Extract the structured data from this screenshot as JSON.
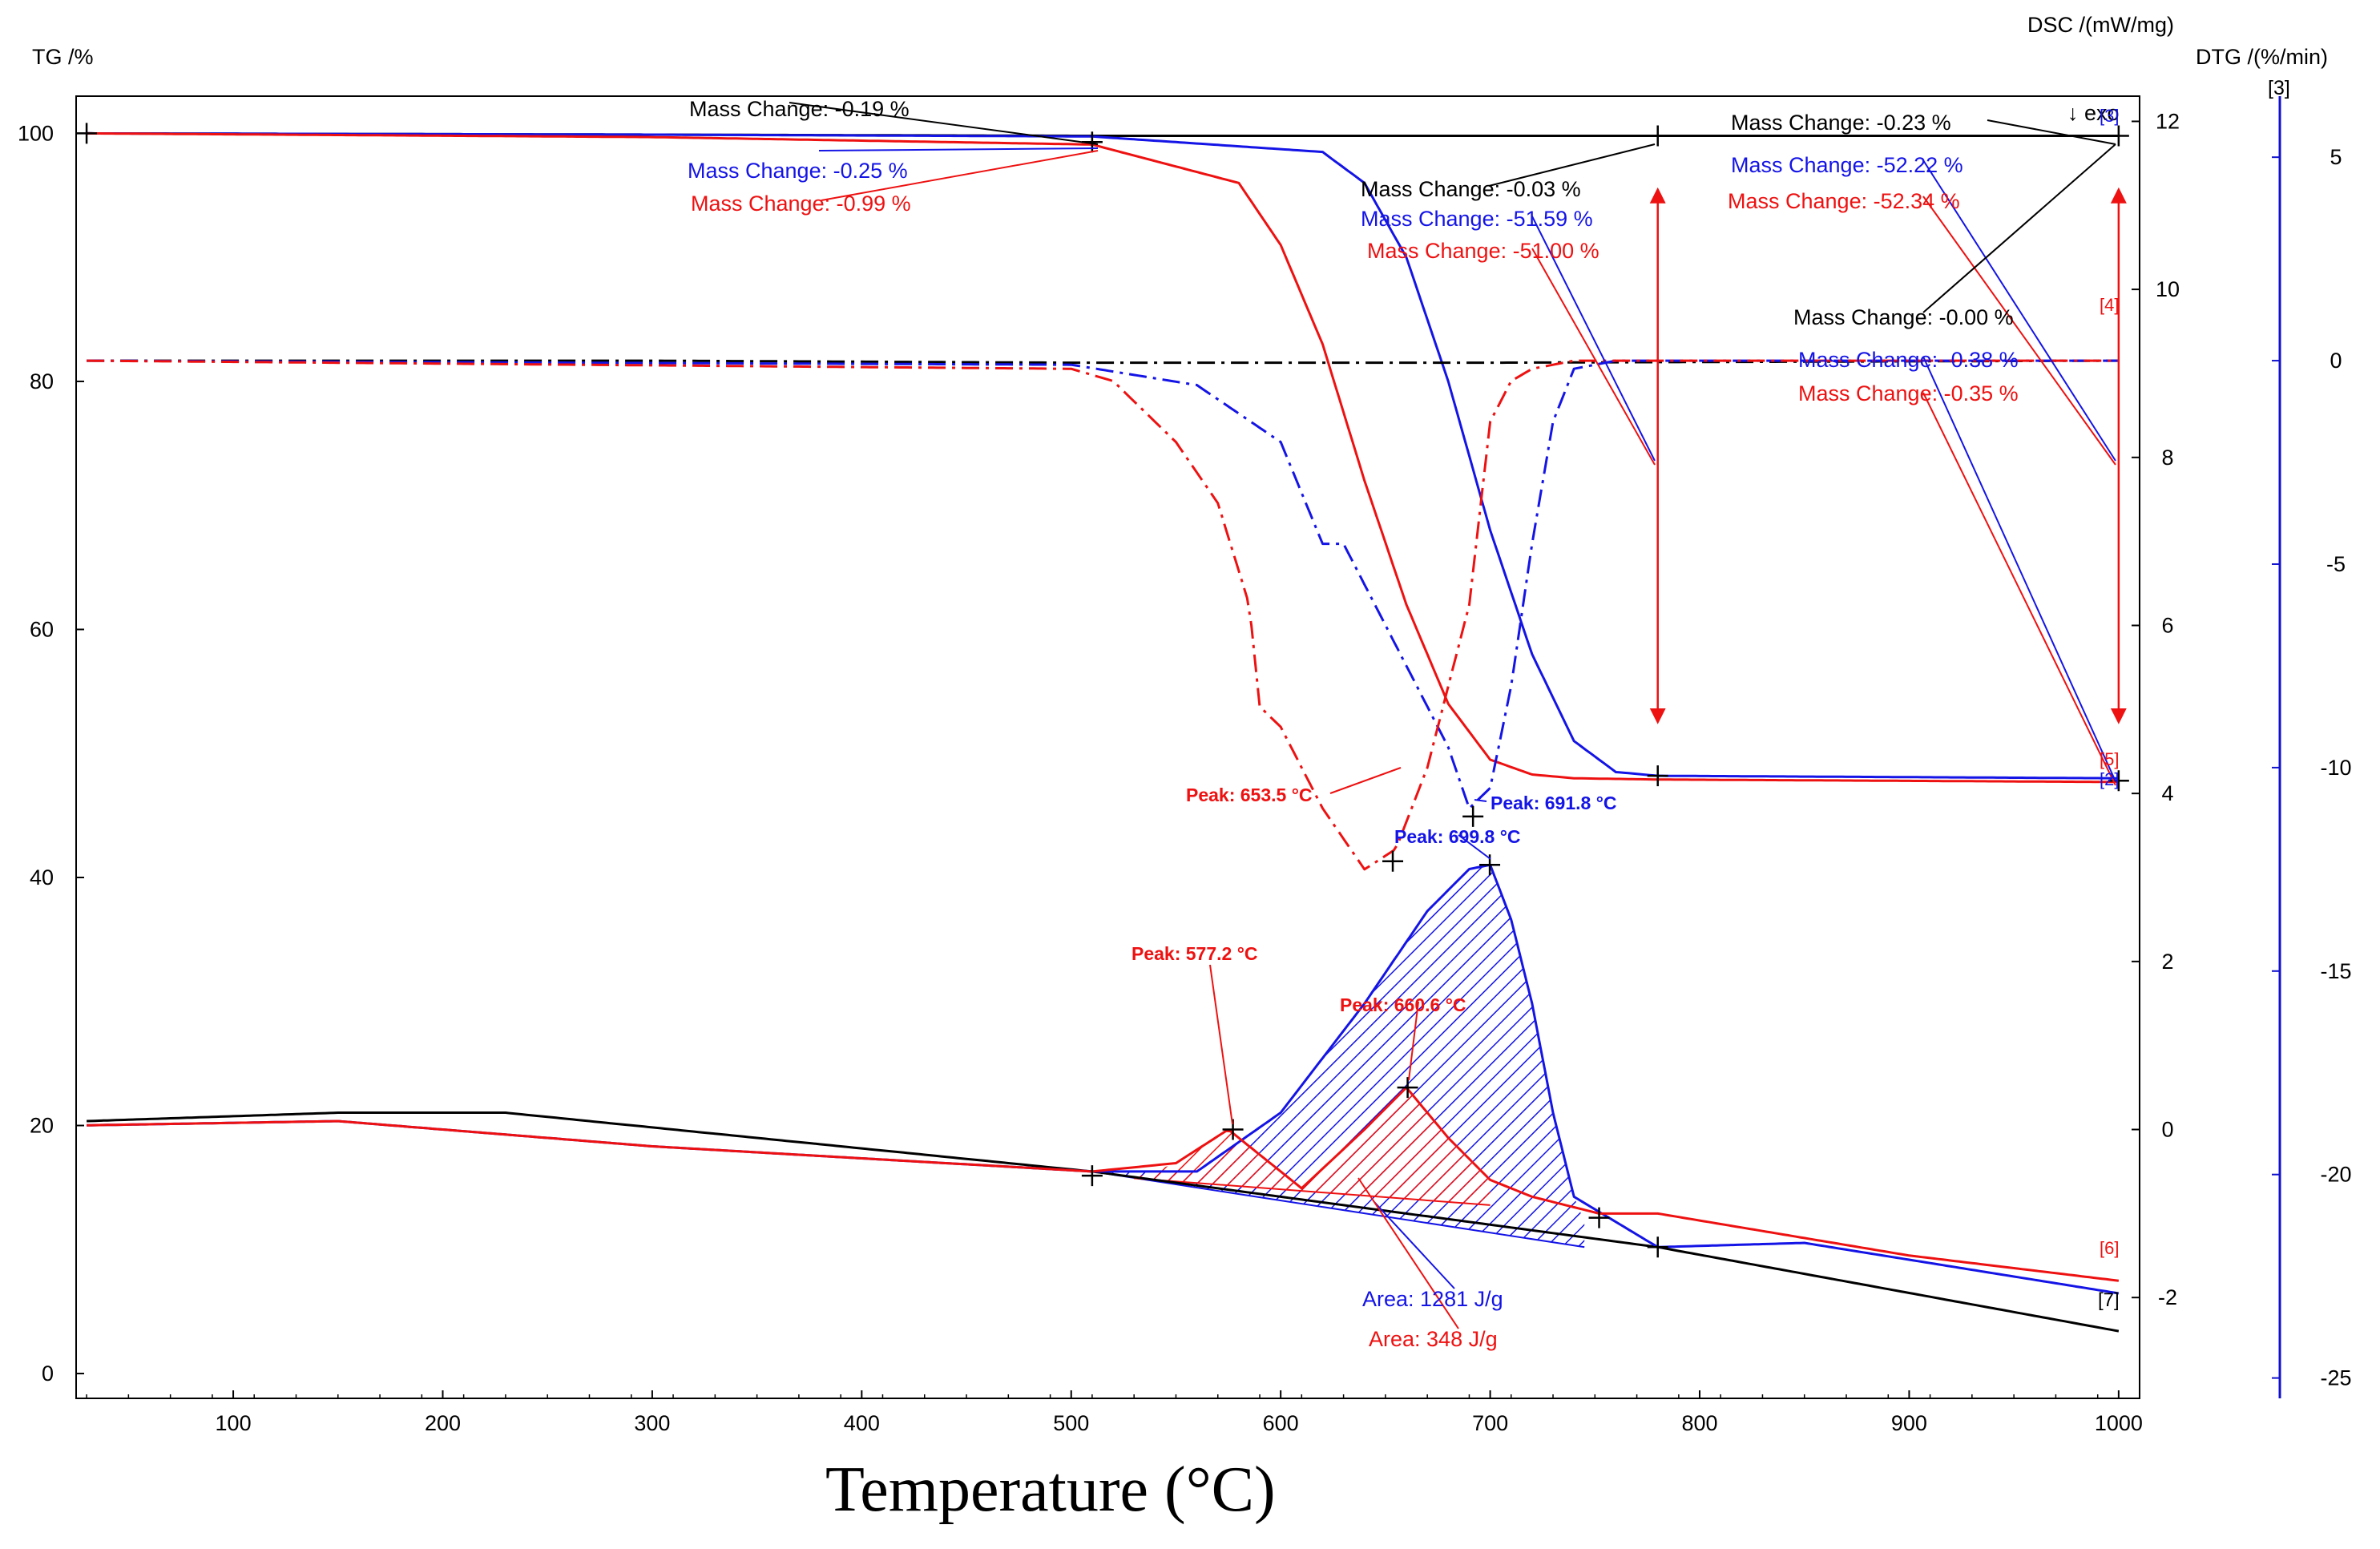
{
  "chart_data": {
    "type": "line",
    "title": "",
    "xlabel": "Temperature (°C)",
    "xlim": [
      25,
      1010
    ],
    "x_ticks": [
      "100",
      "200",
      "300",
      "400",
      "500",
      "600",
      "700",
      "800",
      "900",
      "1000"
    ],
    "axes": {
      "tg": {
        "label": "TG /%",
        "ylim": [
          -2,
          103
        ],
        "ticks": [
          "0",
          "20",
          "40",
          "60",
          "80",
          "100"
        ]
      },
      "dsc": {
        "label": "DSC /(mW/mg)",
        "marker": "↓ exo",
        "ylim": [
          -3.2,
          12.3
        ],
        "ticks": [
          "-2",
          "0",
          "2",
          "4",
          "6",
          "8",
          "10",
          "12"
        ]
      },
      "dtg": {
        "label": "DTG /(%/min)",
        "tag": "[3]",
        "ylim": [
          -25.5,
          6.5
        ],
        "ticks": [
          "-25",
          "-20",
          "-15",
          "-10",
          "-5",
          "0",
          "5"
        ]
      }
    },
    "colors": {
      "black": "#000000",
      "blue": "#1414e6",
      "red": "#ee1111",
      "dtg_axis": "#1010cc"
    },
    "series": [
      {
        "name": "TG black",
        "axis": "tg",
        "color": "#000000",
        "style": "solid",
        "x": [
          30,
          300,
          510,
          700,
          780,
          1000
        ],
        "y": [
          100,
          99.9,
          99.8,
          99.8,
          99.8,
          99.8
        ]
      },
      {
        "name": "TG blue",
        "axis": "tg",
        "color": "#1414e6",
        "style": "solid",
        "x": [
          30,
          300,
          510,
          620,
          640,
          660,
          680,
          700,
          720,
          740,
          760,
          780,
          1000
        ],
        "y": [
          100,
          99.9,
          99.75,
          98.5,
          96,
          90,
          80,
          68,
          58,
          51,
          48.5,
          48.2,
          48
        ]
      },
      {
        "name": "TG red",
        "axis": "tg",
        "color": "#ee1111",
        "style": "solid",
        "x": [
          30,
          300,
          510,
          580,
          600,
          620,
          640,
          660,
          680,
          700,
          720,
          740,
          780,
          1000
        ],
        "y": [
          100,
          99.7,
          99.1,
          96,
          91,
          83,
          72,
          62,
          54,
          49.5,
          48.3,
          48,
          47.9,
          47.7
        ]
      },
      {
        "name": "DTG black",
        "axis": "dtg",
        "color": "#000000",
        "style": "dashdot",
        "x": [
          30,
          300,
          500,
          700,
          1000
        ],
        "y": [
          0,
          0,
          -0.05,
          -0.05,
          0
        ]
      },
      {
        "name": "DTG blue",
        "axis": "dtg",
        "color": "#1414e6",
        "style": "dashdot",
        "x": [
          30,
          500,
          560,
          600,
          620,
          630,
          640,
          660,
          680,
          690,
          700,
          710,
          720,
          730,
          740,
          760,
          1000
        ],
        "y": [
          0,
          -0.1,
          -0.6,
          -2,
          -4.5,
          -4.5,
          -5.5,
          -7.5,
          -9.5,
          -11,
          -10.5,
          -8,
          -4.5,
          -1.5,
          -0.2,
          0,
          0
        ]
      },
      {
        "name": "DTG red",
        "axis": "dtg",
        "color": "#ee1111",
        "style": "dashdot",
        "x": [
          30,
          500,
          520,
          550,
          570,
          585,
          590,
          600,
          620,
          640,
          655,
          670,
          690,
          700,
          710,
          720,
          740,
          1000
        ],
        "y": [
          0,
          -0.2,
          -0.5,
          -2,
          -3.5,
          -6,
          -8.5,
          -9,
          -11,
          -12.5,
          -12,
          -10,
          -6,
          -1.5,
          -0.5,
          -0.2,
          0,
          0
        ]
      },
      {
        "name": "DSC black",
        "axis": "dsc",
        "color": "#000000",
        "style": "solid",
        "x": [
          30,
          150,
          230,
          510,
          780,
          1000
        ],
        "y": [
          0.1,
          0.2,
          0.2,
          -0.5,
          -1.4,
          -2.4
        ]
      },
      {
        "name": "DSC blue",
        "axis": "dsc",
        "color": "#1414e6",
        "style": "solid",
        "x": [
          30,
          150,
          300,
          510,
          560,
          600,
          640,
          670,
          690,
          700,
          710,
          720,
          730,
          740,
          760,
          780,
          850,
          1000
        ],
        "y": [
          0.05,
          0.1,
          -0.2,
          -0.5,
          -0.5,
          0.2,
          1.5,
          2.6,
          3.1,
          3.15,
          2.5,
          1.5,
          0.2,
          -0.8,
          -1.1,
          -1.4,
          -1.35,
          -1.95
        ]
      },
      {
        "name": "DSC red",
        "axis": "dsc",
        "color": "#ee1111",
        "style": "solid",
        "x": [
          30,
          150,
          300,
          510,
          550,
          575,
          590,
          610,
          640,
          660,
          680,
          700,
          720,
          752,
          780,
          900,
          1000
        ],
        "y": [
          0.05,
          0.1,
          -0.2,
          -0.5,
          -0.4,
          0,
          -0.3,
          -0.7,
          0,
          0.5,
          -0.1,
          -0.6,
          -0.8,
          -1,
          -1,
          -1.5,
          -1.8
        ]
      }
    ],
    "shaded_areas": [
      {
        "color": "#1414e6",
        "x": [
          510,
          560,
          600,
          640,
          670,
          690,
          700,
          710,
          720,
          730,
          740,
          745
        ],
        "top": [
          -0.5,
          -0.5,
          0.2,
          1.5,
          2.6,
          3.1,
          3.15,
          2.5,
          1.5,
          0.2,
          -0.8,
          -1.1
        ],
        "base": [
          -0.5,
          -1.4
        ]
      },
      {
        "color": "#ee1111",
        "x": [
          530,
          550,
          575,
          590,
          610,
          640,
          660,
          680,
          700
        ],
        "top": [
          -0.58,
          -0.4,
          0,
          -0.3,
          -0.7,
          0,
          0.5,
          -0.1,
          -0.6
        ],
        "base": [
          -0.58,
          -0.9
        ]
      }
    ],
    "range_arrows": [
      {
        "x": 780,
        "axis": "tg",
        "y1": 95,
        "y2": 53,
        "color": "#ee1111"
      },
      {
        "x": 1000,
        "axis": "tg",
        "y1": 95,
        "y2": 53,
        "color": "#ee1111"
      }
    ],
    "markers": [
      {
        "x": 30,
        "axis": "tg",
        "y": 100
      },
      {
        "x": 510,
        "axis": "tg",
        "y": 99.3
      },
      {
        "x": 780,
        "axis": "tg",
        "y": 99.8
      },
      {
        "x": 1000,
        "axis": "tg",
        "y": 99.8
      },
      {
        "x": 780,
        "axis": "tg",
        "y": 48.2
      },
      {
        "x": 1000,
        "axis": "tg",
        "y": 47.8
      },
      {
        "x": 653.5,
        "axis": "dtg",
        "y": -12.3
      },
      {
        "x": 691.8,
        "axis": "dtg",
        "y": -11.2
      },
      {
        "x": 699.8,
        "axis": "dsc",
        "y": 3.15
      },
      {
        "x": 577.2,
        "axis": "dsc",
        "y": 0
      },
      {
        "x": 660.6,
        "axis": "dsc",
        "y": 0.5
      },
      {
        "x": 510,
        "axis": "dsc",
        "y": -0.55
      },
      {
        "x": 752,
        "axis": "dsc",
        "y": -1.05
      },
      {
        "x": 780,
        "axis": "dsc",
        "y": -1.4
      }
    ],
    "annotations": [
      {
        "text": "Mass Change: -0.19 %",
        "color": "#000000"
      },
      {
        "text": "Mass Change: -0.25 %",
        "color": "#1414e6"
      },
      {
        "text": "Mass Change: -0.99 %",
        "color": "#ee1111"
      },
      {
        "text": "Mass Change: -0.03 %",
        "color": "#000000"
      },
      {
        "text": "Mass Change: -51.59 %",
        "color": "#1414e6"
      },
      {
        "text": "Mass Change: -51.00 %",
        "color": "#ee1111"
      },
      {
        "text": "Mass Change: -0.23 %",
        "color": "#000000"
      },
      {
        "text": "Mass Change: -52.22 %",
        "color": "#1414e6"
      },
      {
        "text": "Mass Change: -52.34 %",
        "color": "#ee1111"
      },
      {
        "text": "Mass Change: -0.00 %",
        "color": "#000000"
      },
      {
        "text": "Mass Change: -0.38 %",
        "color": "#1414e6"
      },
      {
        "text": "Mass Change: -0.35 %",
        "color": "#ee1111"
      },
      {
        "text": "Peak: 653.5 °C",
        "color": "#ee1111"
      },
      {
        "text": "Peak: 691.8 °C",
        "color": "#1414e6"
      },
      {
        "text": "Peak: 699.8 °C",
        "color": "#1414e6"
      },
      {
        "text": "Peak: 577.2 °C",
        "color": "#ee1111"
      },
      {
        "text": "Peak: 660.6 °C",
        "color": "#ee1111"
      },
      {
        "text": "Area: 1281 J/g",
        "color": "#1414e6"
      },
      {
        "text": "Area: 348 J/g",
        "color": "#ee1111"
      }
    ],
    "curve_tags": [
      {
        "text": "[3]",
        "color": "#1414e6"
      },
      {
        "text": "[4]",
        "color": "#ee1111"
      },
      {
        "text": "[5]",
        "color": "#ee1111"
      },
      {
        "text": "[2]",
        "color": "#1414e6"
      },
      {
        "text": "[6]",
        "color": "#ee1111"
      },
      {
        "text": "[7]",
        "color": "#000000"
      }
    ]
  }
}
